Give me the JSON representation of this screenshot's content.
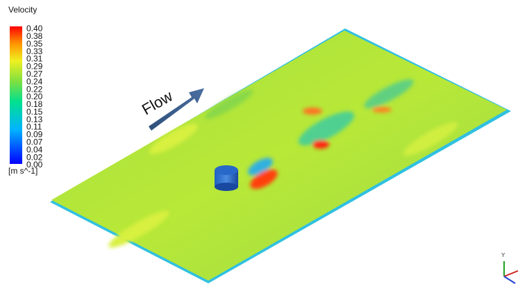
{
  "legend": {
    "title": "Velocity",
    "labels": [
      "0.40",
      "0.38",
      "0.35",
      "0.33",
      "0.31",
      "0.29",
      "0.27",
      "0.24",
      "0.22",
      "0.20",
      "0.18",
      "0.15",
      "0.13",
      "0.11",
      "0.09",
      "0.07",
      "0.04",
      "0.02",
      "0.00"
    ],
    "unit": "[m s^-1]"
  },
  "annotation": "Flow",
  "triad": {
    "label": "Y"
  }
}
